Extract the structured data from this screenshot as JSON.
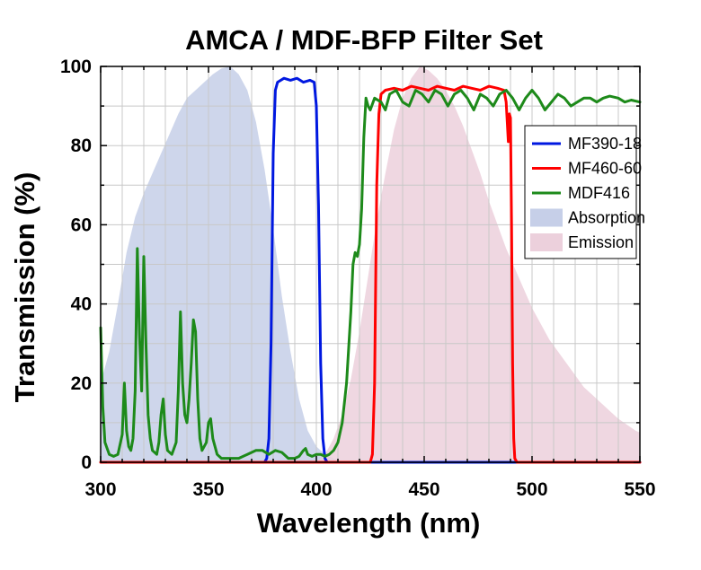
{
  "chart_data": {
    "type": "line",
    "title": "AMCA / MDF-BFP Filter Set",
    "xlabel": "Wavelength (nm)",
    "ylabel": "Transmission (%)",
    "xlim": [
      300,
      550
    ],
    "ylim": [
      0,
      100
    ],
    "x_ticks": [
      300,
      350,
      400,
      450,
      500,
      550
    ],
    "y_ticks": [
      0,
      20,
      40,
      60,
      80,
      100
    ],
    "grid": true,
    "legend_position": "right",
    "series": [
      {
        "name": "MF390-18",
        "kind": "line",
        "color": "#0018e0",
        "points": [
          [
            370,
            0
          ],
          [
            376,
            0
          ],
          [
            377,
            1
          ],
          [
            378,
            6
          ],
          [
            379,
            30
          ],
          [
            380,
            78
          ],
          [
            381,
            94
          ],
          [
            382,
            96
          ],
          [
            385,
            97
          ],
          [
            388,
            96.5
          ],
          [
            391,
            97
          ],
          [
            394,
            96
          ],
          [
            397,
            96.5
          ],
          [
            399,
            96
          ],
          [
            400,
            90
          ],
          [
            401,
            65
          ],
          [
            402,
            25
          ],
          [
            403,
            6
          ],
          [
            404,
            1
          ],
          [
            405,
            0
          ],
          [
            430,
            0
          ],
          [
            550,
            0
          ]
        ]
      },
      {
        "name": "MF460-60",
        "kind": "line",
        "color": "#ff0000",
        "points": [
          [
            300,
            0
          ],
          [
            425,
            0
          ],
          [
            426,
            2
          ],
          [
            427,
            20
          ],
          [
            428,
            70
          ],
          [
            429,
            88
          ],
          [
            430,
            93
          ],
          [
            432,
            94
          ],
          [
            436,
            94.5
          ],
          [
            440,
            94
          ],
          [
            444,
            95
          ],
          [
            448,
            94.5
          ],
          [
            452,
            94
          ],
          [
            456,
            95
          ],
          [
            460,
            94.5
          ],
          [
            464,
            94
          ],
          [
            468,
            95
          ],
          [
            472,
            94.5
          ],
          [
            476,
            94
          ],
          [
            480,
            95
          ],
          [
            484,
            94.5
          ],
          [
            487,
            94
          ],
          [
            488,
            91
          ],
          [
            489,
            81
          ],
          [
            489.5,
            88
          ],
          [
            490,
            87
          ],
          [
            490.5,
            60
          ],
          [
            491,
            25
          ],
          [
            491.5,
            6
          ],
          [
            492,
            1
          ],
          [
            493,
            0
          ],
          [
            550,
            0
          ]
        ]
      },
      {
        "name": "MDF416",
        "kind": "line",
        "color": "#1d8a1a",
        "points": [
          [
            300,
            34
          ],
          [
            301,
            14
          ],
          [
            302,
            5
          ],
          [
            304,
            2
          ],
          [
            306,
            1.5
          ],
          [
            308,
            2
          ],
          [
            310,
            7
          ],
          [
            311,
            20
          ],
          [
            312,
            8
          ],
          [
            313,
            4
          ],
          [
            314,
            3
          ],
          [
            315,
            6
          ],
          [
            316,
            18
          ],
          [
            317,
            54
          ],
          [
            318,
            32
          ],
          [
            319,
            18
          ],
          [
            320,
            52
          ],
          [
            321,
            30
          ],
          [
            322,
            12
          ],
          [
            323,
            6
          ],
          [
            324,
            3
          ],
          [
            326,
            2
          ],
          [
            327,
            5
          ],
          [
            328,
            12
          ],
          [
            329,
            16
          ],
          [
            330,
            7
          ],
          [
            331,
            3
          ],
          [
            333,
            2
          ],
          [
            335,
            5
          ],
          [
            336,
            18
          ],
          [
            337,
            38
          ],
          [
            338,
            20
          ],
          [
            339,
            12
          ],
          [
            340,
            10
          ],
          [
            341,
            16
          ],
          [
            342,
            25
          ],
          [
            343,
            36
          ],
          [
            344,
            33
          ],
          [
            345,
            16
          ],
          [
            346,
            6
          ],
          [
            347,
            3
          ],
          [
            349,
            5
          ],
          [
            350,
            10
          ],
          [
            351,
            11
          ],
          [
            352,
            6
          ],
          [
            354,
            2
          ],
          [
            356,
            1
          ],
          [
            360,
            1
          ],
          [
            364,
            1
          ],
          [
            368,
            2
          ],
          [
            372,
            3
          ],
          [
            375,
            3
          ],
          [
            378,
            2
          ],
          [
            381,
            3
          ],
          [
            384,
            2.5
          ],
          [
            387,
            1
          ],
          [
            390,
            1
          ],
          [
            392,
            1.5
          ],
          [
            394,
            3
          ],
          [
            395,
            3.5
          ],
          [
            396,
            2
          ],
          [
            398,
            1.5
          ],
          [
            400,
            2
          ],
          [
            402,
            2
          ],
          [
            404,
            1.5
          ],
          [
            406,
            2
          ],
          [
            408,
            3
          ],
          [
            410,
            5
          ],
          [
            412,
            10
          ],
          [
            414,
            20
          ],
          [
            416,
            38
          ],
          [
            417,
            50
          ],
          [
            418,
            53
          ],
          [
            419,
            52
          ],
          [
            420,
            55
          ],
          [
            421,
            64
          ],
          [
            422,
            82
          ],
          [
            423,
            92
          ],
          [
            424,
            90
          ],
          [
            425,
            89
          ],
          [
            427,
            92
          ],
          [
            430,
            91
          ],
          [
            432,
            89
          ],
          [
            434,
            93
          ],
          [
            437,
            94
          ],
          [
            440,
            91
          ],
          [
            443,
            90
          ],
          [
            446,
            94
          ],
          [
            449,
            93
          ],
          [
            452,
            91
          ],
          [
            455,
            94
          ],
          [
            458,
            93
          ],
          [
            461,
            90
          ],
          [
            464,
            93
          ],
          [
            467,
            94
          ],
          [
            470,
            92
          ],
          [
            473,
            89
          ],
          [
            476,
            93
          ],
          [
            479,
            92
          ],
          [
            482,
            90
          ],
          [
            485,
            93
          ],
          [
            488,
            94
          ],
          [
            491,
            92
          ],
          [
            494,
            89
          ],
          [
            497,
            92
          ],
          [
            500,
            94
          ],
          [
            503,
            92
          ],
          [
            506,
            89
          ],
          [
            509,
            91
          ],
          [
            512,
            93
          ],
          [
            515,
            92
          ],
          [
            518,
            90
          ],
          [
            521,
            91
          ],
          [
            524,
            92
          ],
          [
            527,
            92
          ],
          [
            530,
            91
          ],
          [
            533,
            92
          ],
          [
            536,
            92.5
          ],
          [
            540,
            92
          ],
          [
            543,
            91
          ],
          [
            546,
            91.5
          ],
          [
            550,
            91
          ]
        ]
      },
      {
        "name": "Absorption",
        "kind": "area",
        "color": "#c6cfe8",
        "points": [
          [
            300,
            20
          ],
          [
            304,
            28
          ],
          [
            308,
            40
          ],
          [
            312,
            53
          ],
          [
            316,
            62
          ],
          [
            320,
            68
          ],
          [
            324,
            73
          ],
          [
            328,
            78
          ],
          [
            332,
            83
          ],
          [
            336,
            88
          ],
          [
            340,
            92
          ],
          [
            344,
            94
          ],
          [
            348,
            96
          ],
          [
            352,
            98
          ],
          [
            356,
            99.5
          ],
          [
            360,
            100
          ],
          [
            364,
            98
          ],
          [
            368,
            94
          ],
          [
            372,
            86
          ],
          [
            376,
            74
          ],
          [
            380,
            59
          ],
          [
            384,
            42
          ],
          [
            388,
            28
          ],
          [
            392,
            16
          ],
          [
            396,
            8
          ],
          [
            400,
            4
          ],
          [
            404,
            2
          ],
          [
            408,
            1
          ],
          [
            412,
            0
          ],
          [
            550,
            0
          ]
        ]
      },
      {
        "name": "Emission",
        "kind": "area",
        "color": "#ecd0dc",
        "points": [
          [
            300,
            0
          ],
          [
            400,
            0
          ],
          [
            404,
            2
          ],
          [
            408,
            6
          ],
          [
            412,
            12
          ],
          [
            416,
            21
          ],
          [
            420,
            33
          ],
          [
            424,
            47
          ],
          [
            428,
            61
          ],
          [
            432,
            73
          ],
          [
            436,
            84
          ],
          [
            440,
            92
          ],
          [
            444,
            97
          ],
          [
            448,
            100
          ],
          [
            452,
            99
          ],
          [
            456,
            97
          ],
          [
            460,
            94
          ],
          [
            464,
            90
          ],
          [
            468,
            85
          ],
          [
            472,
            79
          ],
          [
            476,
            73
          ],
          [
            480,
            66
          ],
          [
            484,
            60
          ],
          [
            488,
            54
          ],
          [
            492,
            49
          ],
          [
            496,
            44
          ],
          [
            500,
            39
          ],
          [
            504,
            35
          ],
          [
            508,
            31
          ],
          [
            512,
            28
          ],
          [
            516,
            25
          ],
          [
            520,
            22
          ],
          [
            524,
            19
          ],
          [
            528,
            17
          ],
          [
            532,
            15
          ],
          [
            536,
            13
          ],
          [
            540,
            11
          ],
          [
            544,
            9.5
          ],
          [
            548,
            8
          ],
          [
            550,
            7.5
          ]
        ]
      }
    ]
  }
}
